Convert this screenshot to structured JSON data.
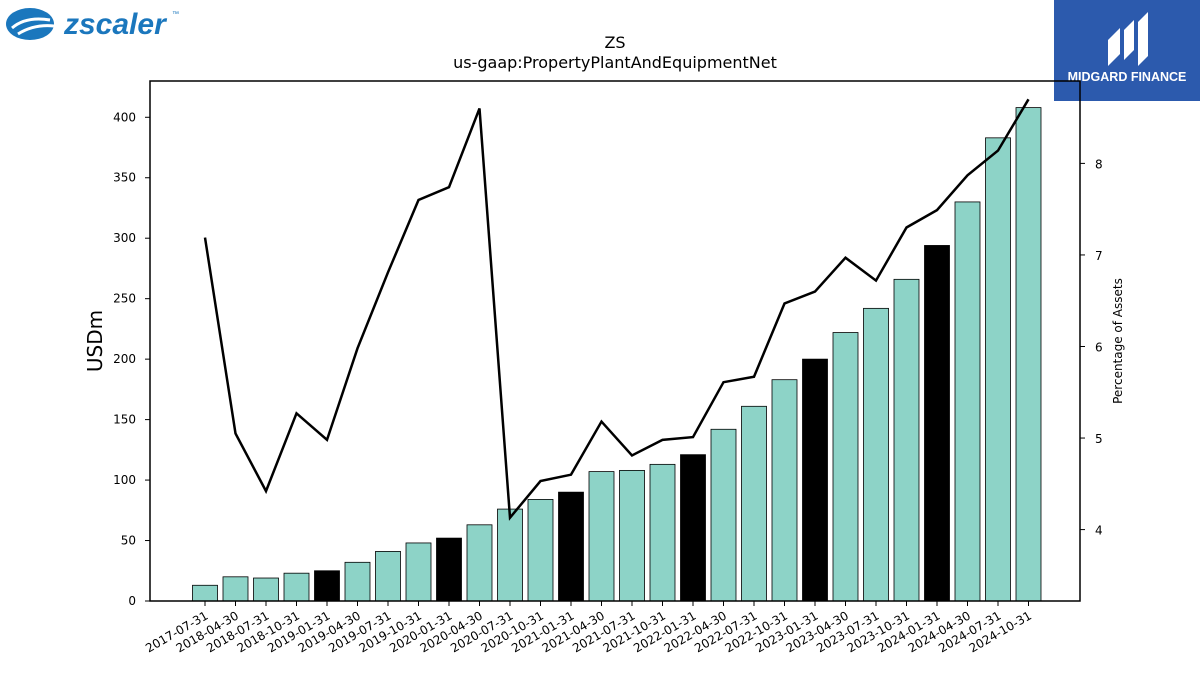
{
  "header": {
    "left_logo_text": "zscaler",
    "left_logo_tm": "™",
    "right_logo_text": "MIDGARD FINANCE"
  },
  "colors": {
    "bar_default": "#8dd3c7",
    "bar_highlight": "#000000",
    "line": "#000000",
    "logo_left": "#1b77bd",
    "logo_right_bg": "#2c5aad"
  },
  "chart_data": {
    "type": "bar",
    "title": "ZS",
    "subtitle": "us-gaap:PropertyPlantAndEquipmentNet",
    "ylabel": "USDm",
    "y2label": "Percentage of Assets",
    "ylim": [
      0,
      430
    ],
    "y2lim": [
      3.22,
      8.9
    ],
    "yticks": [
      0,
      50,
      100,
      150,
      200,
      250,
      300,
      350,
      400
    ],
    "y2ticks": [
      4,
      5,
      6,
      7,
      8
    ],
    "categories": [
      "2017-07-31",
      "2018-04-30",
      "2018-07-31",
      "2018-10-31",
      "2019-01-31",
      "2019-04-30",
      "2019-07-31",
      "2019-10-31",
      "2020-01-31",
      "2020-04-30",
      "2020-07-31",
      "2020-10-31",
      "2021-01-31",
      "2021-04-30",
      "2021-07-31",
      "2021-10-31",
      "2022-01-31",
      "2022-04-30",
      "2022-07-31",
      "2022-10-31",
      "2023-01-31",
      "2023-04-30",
      "2023-07-31",
      "2023-10-31",
      "2024-01-31",
      "2024-04-30",
      "2024-07-31",
      "2024-10-31"
    ],
    "series": [
      {
        "type": "bar",
        "values": [
          13,
          20,
          19,
          23,
          25,
          32,
          41,
          48,
          52,
          63,
          76,
          84,
          90,
          107,
          108,
          113,
          121,
          142,
          161,
          183,
          200,
          222,
          242,
          266,
          294,
          330,
          383,
          408
        ],
        "highlight": [
          false,
          false,
          false,
          false,
          true,
          false,
          false,
          false,
          true,
          false,
          false,
          false,
          true,
          false,
          false,
          false,
          true,
          false,
          false,
          false,
          true,
          false,
          false,
          false,
          true,
          false,
          false,
          false
        ]
      },
      {
        "type": "line",
        "axis": "right",
        "values": [
          7.19,
          5.05,
          4.42,
          5.27,
          4.98,
          5.98,
          6.81,
          7.6,
          7.74,
          8.6,
          4.13,
          4.53,
          4.6,
          5.18,
          4.81,
          4.98,
          5.01,
          5.61,
          5.67,
          6.47,
          6.6,
          6.97,
          6.72,
          7.3,
          7.49,
          7.87,
          8.14,
          8.7
        ]
      }
    ],
    "legend": "none",
    "grid": false
  }
}
